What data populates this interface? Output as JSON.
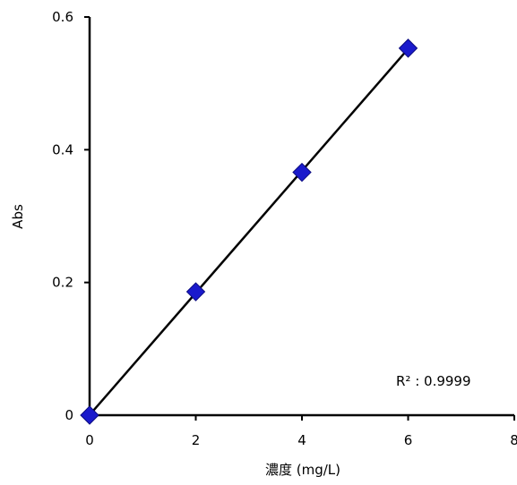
{
  "chart_data": {
    "type": "scatter",
    "title": "",
    "xlabel": "濃度 (mg/L)",
    "ylabel": "Abs",
    "xlim": [
      0,
      8
    ],
    "ylim": [
      0,
      0.6
    ],
    "xticks": [
      0,
      2,
      4,
      6,
      8
    ],
    "yticks": [
      0,
      0.2,
      0.4,
      0.6
    ],
    "xtick_labels": [
      "0",
      "2",
      "4",
      "6",
      "8"
    ],
    "ytick_labels": [
      "0",
      "0.2",
      "0.4",
      "0.6"
    ],
    "grid": false,
    "legend": "none",
    "series": [
      {
        "x": [
          0,
          2,
          4,
          6
        ],
        "y": [
          0.0,
          0.186,
          0.366,
          0.553
        ],
        "marker": "diamond",
        "color": "#1a1acc"
      }
    ],
    "trendline": {
      "type": "linear",
      "color": "#000000"
    },
    "annotation": "R² : 0.9999"
  }
}
